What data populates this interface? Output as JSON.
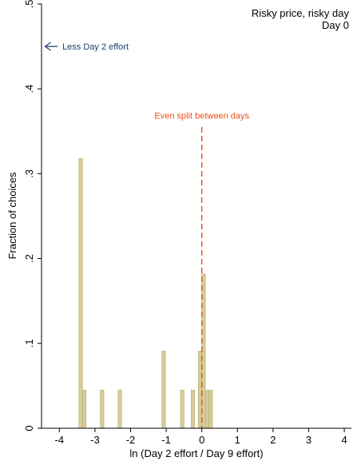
{
  "chart_data": {
    "type": "bar",
    "title": "Risky price, risky day",
    "subtitle": "Day 0",
    "xlabel": "ln (Day 2 effort / Day 9 effort)",
    "ylabel": "Fraction of choices",
    "xlim": [
      -4.5,
      4.2
    ],
    "ylim": [
      0,
      0.5
    ],
    "x_ticks": [
      {
        "value": -4,
        "label": "-4"
      },
      {
        "value": -3,
        "label": "-3"
      },
      {
        "value": -2,
        "label": "-2"
      },
      {
        "value": -1,
        "label": "-1"
      },
      {
        "value": 0,
        "label": "0"
      },
      {
        "value": 1,
        "label": "1"
      },
      {
        "value": 2,
        "label": "2"
      },
      {
        "value": 3,
        "label": "3"
      },
      {
        "value": 4,
        "label": "4"
      }
    ],
    "y_ticks": [
      {
        "value": 0,
        "label": "0"
      },
      {
        "value": 0.1,
        "label": ".1"
      },
      {
        "value": 0.2,
        "label": ".2"
      },
      {
        "value": 0.3,
        "label": ".3"
      },
      {
        "value": 0.4,
        "label": ".4"
      },
      {
        "value": 0.5,
        "label": ".5"
      }
    ],
    "bar_width": 0.1,
    "bars": [
      {
        "x": -3.4,
        "value": 0.318
      },
      {
        "x": -3.3,
        "value": 0.045
      },
      {
        "x": -2.8,
        "value": 0.045
      },
      {
        "x": -2.3,
        "value": 0.045
      },
      {
        "x": -1.07,
        "value": 0.091
      },
      {
        "x": -0.55,
        "value": 0.045
      },
      {
        "x": -0.25,
        "value": 0.045
      },
      {
        "x": -0.05,
        "value": 0.091
      },
      {
        "x": 0.05,
        "value": 0.182
      },
      {
        "x": 0.15,
        "value": 0.045
      },
      {
        "x": 0.25,
        "value": 0.045
      }
    ],
    "colors": {
      "bar_fill": "#d5cc99",
      "bar_stroke": "#b8ae72",
      "arrow_color": "#1f3d6e",
      "split_color": "#e8501f",
      "axis_color": "#000000"
    },
    "annotations": {
      "arrow_text": "Less Day 2 effort",
      "arrow_from": [
        -4.05,
        0.45
      ],
      "arrow_to": [
        -4.4,
        0.45
      ],
      "split_label": "Even split between days",
      "split_x": 0,
      "split_y_top": 0.355,
      "split_label_y": 0.365
    }
  }
}
